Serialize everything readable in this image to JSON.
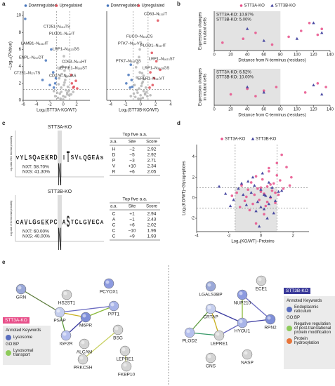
{
  "panel_letters": [
    "a",
    "b",
    "c",
    "d",
    "e"
  ],
  "chart_data": [
    {
      "type": "scatter",
      "variant": "volcano",
      "xlabel": "Log₂(STT3A-KO/WT)",
      "ylabel": "–Log₁₀(PValue)",
      "xlim": [
        -6,
        4
      ],
      "ylim": [
        0,
        10.5
      ],
      "xticks": [
        -6,
        -4,
        -2,
        0,
        2
      ],
      "yticks": [
        0,
        2,
        4,
        6,
        8,
        10
      ],
      "hlines": [
        1.3
      ],
      "vlines": [
        -1,
        1
      ],
      "legend": "top",
      "background": {
        "color": "#b4b4b4",
        "x": [
          -0.8,
          -0.5,
          -0.3,
          0,
          0.2,
          0.4,
          0.6,
          -0.6,
          -0.2,
          0.1,
          0.3,
          0.8,
          -0.9,
          0.5,
          -0.4,
          0.7,
          -0.1,
          0.2,
          0.9,
          -0.7,
          0.0,
          0.3,
          -0.5,
          0.6,
          -0.3,
          1.2,
          -1.2,
          1.5,
          -1.4,
          0.1
        ],
        "values": [
          0.3,
          0.8,
          1.5,
          0.5,
          2.1,
          1.2,
          0.7,
          2.6,
          3.1,
          1.8,
          0.4,
          1.1,
          0.9,
          2.8,
          0.2,
          1.6,
          4.0,
          3.5,
          0.6,
          1.9,
          0.1,
          2.4,
          3.8,
          0.9,
          1.0,
          0.7,
          0.5,
          1.0,
          1.1,
          5.2
        ]
      },
      "series": [
        {
          "name": "Downregulated",
          "color": "#4a78bd",
          "marker": "circle",
          "x": [
            -1.8,
            -2.6,
            -1.5,
            -3.1,
            -1.2,
            -2.0,
            -1.4,
            -5.7,
            -1.1
          ],
          "values": [
            6.0,
            4.7,
            3.3,
            2.4,
            2.0,
            1.8,
            1.5,
            9.6,
            2.6
          ]
        },
        {
          "name": "Upregulated",
          "color": "#e0505a",
          "marker": "circle",
          "x": [
            1.3,
            1.6,
            2.1,
            1.2,
            1.9,
            1.5
          ],
          "values": [
            2.0,
            1.6,
            1.4,
            3.0,
            2.3,
            1.5
          ]
        }
      ],
      "annotations": [
        "CT251–N₁₅₄TS",
        "PLOD1–N₁₉₇IT",
        "LAMB1–N₁₁₅₂IT",
        "LRP1–N₁₆₂₃GS",
        "ENPL–N₂₁₇DT",
        "CD63–N₁₃₀HT",
        "LEPRE1–N₁₈₅ST",
        "CT251–N₁₇₀TS",
        "CD276–N₁₀₄AS"
      ]
    },
    {
      "type": "scatter",
      "variant": "volcano",
      "xlabel": "Log₂(STT3B-KO/WT)",
      "xlim": [
        -4.5,
        4
      ],
      "ylim": [
        0,
        10.5
      ],
      "xticks": [
        -4,
        -2,
        0,
        2,
        4
      ],
      "hlines": [
        1.3
      ],
      "vlines": [
        -1,
        1
      ],
      "legend": "top",
      "background": {
        "color": "#b4b4b4",
        "x": [
          -0.7,
          -0.4,
          -0.2,
          0,
          0.2,
          0.4,
          0.6,
          -0.5,
          -0.1,
          0.1,
          0.3,
          0.8,
          -0.9,
          0.5,
          -0.3,
          0.7,
          -0.6,
          0.2,
          0.9,
          -0.8,
          0.0,
          0.3,
          -0.4,
          0.6,
          -0.2,
          1.3,
          -1.3,
          -0.1,
          0.4,
          -0.5
        ],
        "values": [
          0.4,
          0.9,
          1.4,
          0.6,
          2.0,
          1.1,
          0.8,
          2.7,
          3.3,
          1.7,
          0.3,
          1.0,
          0.8,
          2.5,
          0.2,
          1.5,
          3.9,
          3.2,
          0.5,
          1.8,
          0.2,
          2.2,
          4.4,
          0.7,
          5.1,
          0.6,
          0.5,
          6.0,
          2.9,
          1.2
        ]
      },
      "series": [
        {
          "name": "Downregulated",
          "color": "#4a78bd",
          "marker": "circle",
          "x": [
            -1.3,
            -1.6,
            -1.2,
            -1.9,
            -1.1,
            -1.4
          ],
          "values": [
            4.2,
            3.0,
            2.4,
            2.0,
            1.6,
            1.5
          ]
        },
        {
          "name": "Upregulated",
          "color": "#e0505a",
          "marker": "circle",
          "x": [
            2.3,
            1.5,
            2.1,
            2.6,
            1.3,
            1.8,
            1.6,
            1.2
          ],
          "values": [
            9.4,
            5.6,
            4.6,
            3.6,
            3.3,
            2.6,
            1.8,
            1.5
          ]
        }
      ],
      "annotations": [
        "CD63–N₁₃₀IT",
        "FUCO–N₃₈₂CS",
        "PTK7–N₁₁₇VS",
        "PLOD1–N₁₉₇IT",
        "LRP1–N₁₆₂₃ST",
        "LRP1–N₃₅₂₅GS",
        "PTK7–N₃₉₁GS",
        "ERLR1–N₁₉₁VT"
      ]
    },
    {
      "type": "scatter",
      "xlabel": "Distance from N-terminus (residues)",
      "ylabel": [
        "Expression changes",
        "in mutant cells"
      ],
      "xlim": [
        0,
        140
      ],
      "ylim": [
        0,
        1
      ],
      "xticks": [
        0,
        20,
        40,
        60,
        80,
        100,
        120,
        140
      ],
      "shade": {
        "x": [
          0,
          80
        ]
      },
      "legend": "top",
      "notes": [
        "STT3A-KO: 10.87%",
        "STT3B-KO: 5.00%"
      ],
      "series": [
        {
          "name": "STT3A-KO",
          "color": "#e8508a",
          "marker": "circle",
          "x": [
            10,
            35,
            50,
            70,
            90,
            105,
            115,
            125,
            130
          ],
          "values": [
            0.2,
            0.3,
            0.45,
            0.15,
            0.35,
            0.5,
            0.7,
            0.4,
            0.55
          ]
        },
        {
          "name": "STT3B-KO",
          "color": "#3a3a9a",
          "marker": "triangle",
          "x": [
            40,
            60,
            100,
            120,
            130
          ],
          "values": [
            0.55,
            0.25,
            0.3,
            0.7,
            0.45
          ]
        }
      ]
    },
    {
      "type": "scatter",
      "xlabel": "Distance from C-terminus (residues)",
      "ylabel": [
        "Expression changes",
        "in mutant cells"
      ],
      "xlim": [
        0,
        140
      ],
      "ylim": [
        0,
        1
      ],
      "xticks": [
        0,
        20,
        40,
        60,
        80,
        100,
        120,
        140
      ],
      "shade": {
        "x": [
          0,
          80
        ]
      },
      "legend": "none",
      "notes": [
        "STT3A-KO: 6.52%",
        "STT3B-KO: 10.00%"
      ],
      "series": [
        {
          "color": "#e8508a",
          "marker": "circle",
          "x": [
            20,
            40,
            50,
            60,
            75,
            110,
            125,
            135
          ],
          "values": [
            0.3,
            0.45,
            0.25,
            0.4,
            0.5,
            0.35,
            0.6,
            0.5
          ]
        },
        {
          "color": "#3a3a9a",
          "marker": "triangle",
          "x": [
            40,
            60,
            120,
            130
          ],
          "values": [
            0.5,
            0.35,
            0.55,
            0.3
          ]
        }
      ]
    },
    {
      "type": "scatter",
      "xlabel": "Log₂(KO/WT)–Proteins",
      "ylabel": "Log₂(KO/WT)–Glycopeptides",
      "xlim": [
        -4,
        3
      ],
      "ylim": [
        -3.3,
        5.2
      ],
      "xticks": [
        -4,
        -2,
        0,
        2
      ],
      "yticks": [
        -2,
        0,
        2,
        4
      ],
      "shade": {
        "x": [
          -1.6,
          1
        ],
        "y": [
          -3.3,
          1
        ]
      },
      "hlines": [
        -1,
        1
      ],
      "vlines": [
        -1.6,
        1
      ],
      "legend": "top",
      "series": [
        {
          "name": "STT3A-KO",
          "color": "#e8508a",
          "marker": "circle",
          "x": [
            -1.8,
            -1.5,
            -1.2,
            -1.0,
            -0.8,
            -0.6,
            -0.5,
            -0.4,
            -0.3,
            -0.2,
            -0.1,
            0,
            0.1,
            0.2,
            0.3,
            0.4,
            0.5,
            0.6,
            0.7,
            0.8,
            0.9,
            1.0,
            1.1,
            1.2,
            1.4,
            1.6,
            1.8,
            -0.7,
            -0.3,
            0.2,
            0.5,
            0.9,
            1.3,
            -1.3,
            0.0,
            0.4,
            0.6,
            1.0,
            1.9,
            -0.9
          ],
          "values": [
            0.2,
            0.5,
            1.2,
            -0.3,
            0.8,
            1.5,
            -0.6,
            0.3,
            2.1,
            0.9,
            -0.2,
            0.6,
            1.8,
            0.4,
            -0.8,
            1.1,
            2.6,
            0.0,
            0.7,
            1.4,
            -0.5,
            2.2,
            0.3,
            1.7,
            0.9,
            3.0,
            1.2,
            -1.2,
            -2.5,
            -1.6,
            2.9,
            0.5,
            4.2,
            -0.9,
            1.0,
            -0.4,
            1.3,
            3.4,
            2.0,
            0.1
          ]
        },
        {
          "name": "STT3B-KO",
          "color": "#3a3a9a",
          "marker": "triangle",
          "x": [
            -2.2,
            -1.7,
            -1.4,
            -1.1,
            -0.9,
            -0.6,
            -0.4,
            -0.2,
            0,
            0.2,
            0.3,
            0.5,
            0.7,
            0.9,
            1.1,
            -0.8,
            -0.3,
            0.1,
            0.4,
            0.6,
            -1.9,
            -0.5,
            0.8,
            -1.2,
            0.0,
            1.3,
            -2.6,
            0.2,
            -0.1,
            0.5
          ],
          "values": [
            0.4,
            -0.2,
            0.9,
            0.3,
            -0.7,
            0.5,
            1.2,
            -0.4,
            0.8,
            -1.1,
            0.2,
            -0.6,
            1.0,
            -0.3,
            0.6,
            1.6,
            -1.3,
            2.4,
            -2.0,
            0.1,
            -0.8,
            2.0,
            -1.5,
            1.4,
            -0.9,
            0.7,
            1.1,
            0.3,
            -2.8,
            1.5
          ]
        }
      ]
    }
  ],
  "logos": [
    {
      "title": "STT3A-KO",
      "ylabel": "Log-odds of the binomial probability",
      "letters": [
        "V",
        "Y",
        "L",
        "S",
        "Q",
        "A",
        "E",
        "K",
        "R",
        "D",
        "N",
        "I",
        "T",
        "S",
        "V",
        "L",
        "Q",
        "G",
        "E",
        "A",
        "S"
      ],
      "stats": [
        "NXT: 58.70%",
        "NXS: 41.30%"
      ]
    },
    {
      "title": "STT3B-KO",
      "ylabel": "Log-odds of the binomial probability",
      "letters": [
        "C",
        "A",
        "V",
        "L",
        "G",
        "S",
        "E",
        "K",
        "P",
        "C",
        "N",
        "A",
        "S",
        "T",
        "C",
        "L",
        "G",
        "V",
        "E",
        "C",
        "A"
      ],
      "stats": [
        "NXT: 60.00%",
        "NXS: 40.00%"
      ]
    }
  ],
  "tables": [
    {
      "title": "Top five a.a.",
      "header": [
        "a.a.",
        "Site",
        "Score"
      ],
      "rows": [
        [
          "H",
          "−2",
          2.92
        ],
        [
          "D",
          "−5",
          2.92
        ],
        [
          "P",
          "−3",
          2.71
        ],
        [
          "V",
          "+10",
          2.34
        ],
        [
          "R",
          "+6",
          2.05
        ]
      ]
    },
    {
      "title": "Top five a.a.",
      "header": [
        "a.a.",
        "Site",
        "Score"
      ],
      "rows": [
        [
          "C",
          "+1",
          2.94
        ],
        [
          "A",
          "−1",
          2.43
        ],
        [
          "C",
          "+6",
          2.02
        ],
        [
          "C",
          "−10",
          1.96
        ],
        [
          "C",
          "+9",
          1.93
        ]
      ]
    }
  ],
  "network": {
    "left_nodes": [
      "GRN",
      "HS2ST1",
      "PCYOX1",
      "PSAP",
      "M6PR",
      "PPT1",
      "IGF2R",
      "BSG",
      "ALCAM",
      "PRKCSH",
      "LEPRE1",
      "FKBP10"
    ],
    "right_nodes": [
      "LGALS3BP",
      "ECE1",
      "NUP210",
      "CRTAP",
      "RPN2",
      "HYOU1",
      "PLOD2",
      "LEPRE1",
      "GNS",
      "NASP"
    ],
    "left_box": {
      "tag": "STT3A-KO",
      "heading": "Annoted Keywords",
      "keywords": [
        "Lysosome"
      ],
      "go_heading": "GO:BP",
      "go_terms": [
        "Lysosomal transport"
      ]
    },
    "right_box": {
      "tag": "STT3B-KO",
      "heading": "Annoted Keywords",
      "keywords": [
        "Endoplasmic reticulum"
      ],
      "go_heading": "GO:BP",
      "go_terms": [
        "Negative regulation of post-translational protein modification",
        "Protein hydroxylation"
      ]
    }
  }
}
